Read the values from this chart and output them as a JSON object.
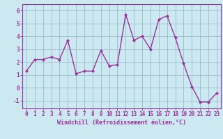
{
  "x": [
    0,
    1,
    2,
    3,
    4,
    5,
    6,
    7,
    8,
    9,
    10,
    11,
    12,
    13,
    14,
    15,
    16,
    17,
    18,
    19,
    20,
    21,
    22,
    23
  ],
  "y": [
    1.3,
    2.2,
    2.2,
    2.4,
    2.2,
    3.7,
    1.1,
    1.3,
    1.3,
    2.9,
    1.7,
    1.8,
    5.7,
    3.7,
    4.0,
    3.0,
    5.3,
    5.6,
    3.9,
    1.9,
    0.1,
    -1.1,
    -1.1,
    -0.4
  ],
  "line_color": "#993399",
  "marker": "D",
  "marker_size": 2.0,
  "background_color": "#cce8f0",
  "grid_color": "#99bbcc",
  "xlabel": "Windchill (Refroidissement éolien,°C)",
  "xlabel_fontsize": 6.0,
  "ylabel_ticks": [
    -1,
    0,
    1,
    2,
    3,
    4,
    5,
    6
  ],
  "xtick_labels": [
    "0",
    "1",
    "2",
    "3",
    "4",
    "5",
    "6",
    "7",
    "8",
    "9",
    "10",
    "11",
    "12",
    "13",
    "14",
    "15",
    "16",
    "17",
    "18",
    "19",
    "20",
    "21",
    "22",
    "23"
  ],
  "ylim": [
    -1.6,
    6.5
  ],
  "xlim": [
    -0.5,
    23.5
  ],
  "tick_fontsize": 5.5,
  "linewidth": 1.0
}
